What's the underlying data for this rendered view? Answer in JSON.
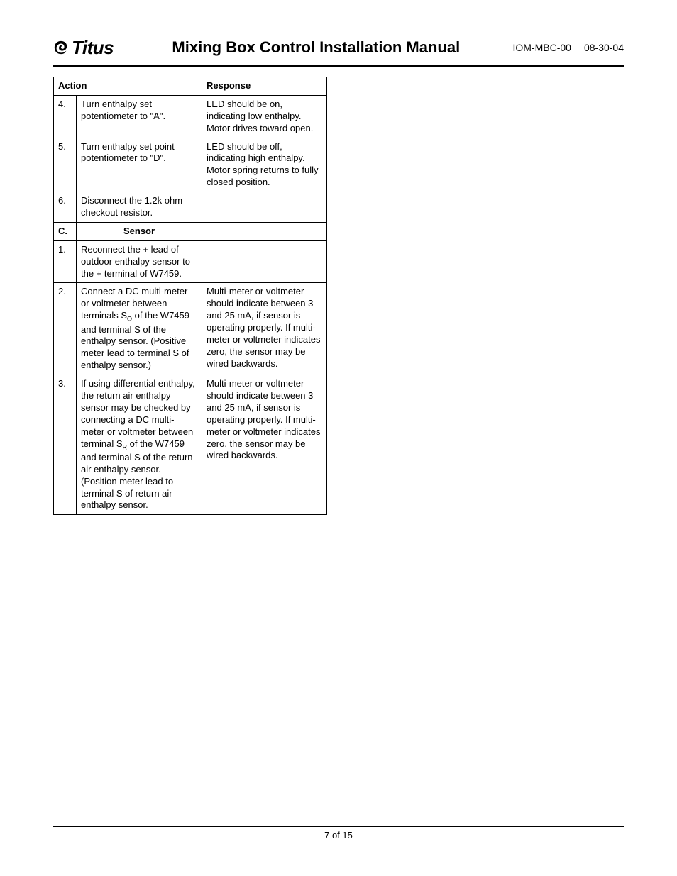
{
  "header": {
    "brand": "Titus",
    "title": "Mixing Box Control Installation Manual",
    "doc_code": "IOM-MBC-00",
    "doc_date": "08-30-04"
  },
  "table": {
    "columns": [
      "Action",
      "Response"
    ],
    "rows": [
      {
        "num": "4.",
        "action": "Turn enthalpy set potentiometer to \"A\".",
        "response": "LED should be on, indicating low enthalpy. Motor drives toward open."
      },
      {
        "num": "5.",
        "action": "Turn enthalpy set point potentiometer to \"D\".",
        "response": "LED should be off, indicating high enthalpy. Motor spring returns to fully closed position."
      },
      {
        "num": "6.",
        "action": "Disconnect the 1.2k ohm checkout resistor.",
        "response": ""
      }
    ],
    "section": {
      "letter": "C.",
      "label": "Sensor"
    },
    "rows2": [
      {
        "num": "1.",
        "action": "Reconnect the + lead of outdoor enthalpy sensor to the + terminal of W7459.",
        "response": ""
      },
      {
        "num": "2.",
        "action_html": "Connect a DC multi-meter or voltmeter between terminals S<sub>O</sub> of the W7459 and terminal S of the enthalpy sensor. (Positive meter lead to terminal S of enthalpy sensor.)",
        "response": "Multi-meter or voltmeter should indicate between 3 and 25 mA, if sensor is operating properly. If multi-meter or voltmeter indicates zero, the sensor may be wired backwards."
      },
      {
        "num": "3.",
        "action_html": "If using differential enthalpy, the return air enthalpy sensor may be checked by connecting a DC multi-meter or voltmeter between terminal S<sub>R</sub> of the W7459 and terminal S of the return air enthalpy sensor. (Position meter lead to terminal S of return air enthalpy sensor.",
        "response": "Multi-meter or voltmeter should indicate between 3 and 25 mA, if sensor is operating properly. If multi-meter or voltmeter indicates zero, the sensor may be wired backwards."
      }
    ]
  },
  "footer": {
    "page_label": "7 of 15"
  }
}
